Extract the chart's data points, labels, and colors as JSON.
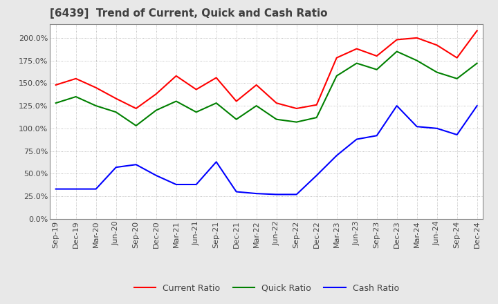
{
  "title": "[6439]  Trend of Current, Quick and Cash Ratio",
  "x_labels": [
    "Sep-19",
    "Dec-19",
    "Mar-20",
    "Jun-20",
    "Sep-20",
    "Dec-20",
    "Mar-21",
    "Jun-21",
    "Sep-21",
    "Dec-21",
    "Mar-22",
    "Jun-22",
    "Sep-22",
    "Dec-22",
    "Mar-23",
    "Jun-23",
    "Sep-23",
    "Dec-23",
    "Mar-24",
    "Jun-24",
    "Sep-24",
    "Dec-24"
  ],
  "current_ratio": [
    148,
    155,
    145,
    133,
    122,
    138,
    158,
    143,
    156,
    130,
    148,
    128,
    122,
    126,
    178,
    188,
    180,
    198,
    200,
    192,
    178,
    208
  ],
  "quick_ratio": [
    128,
    135,
    125,
    118,
    103,
    120,
    130,
    118,
    128,
    110,
    125,
    110,
    107,
    112,
    158,
    172,
    165,
    185,
    175,
    162,
    155,
    172
  ],
  "cash_ratio": [
    33,
    33,
    33,
    57,
    60,
    48,
    38,
    38,
    63,
    30,
    28,
    27,
    27,
    48,
    70,
    88,
    92,
    125,
    102,
    100,
    93,
    125
  ],
  "current_color": "#ff0000",
  "quick_color": "#008000",
  "cash_color": "#0000ff",
  "ylim": [
    0,
    215
  ],
  "yticks": [
    0,
    25,
    50,
    75,
    100,
    125,
    150,
    175,
    200
  ],
  "plot_bg_color": "#ffffff",
  "fig_bg_color": "#e8e8e8",
  "grid_color": "#999999",
  "title_color": "#404040",
  "title_fontsize": 11,
  "axis_fontsize": 8,
  "legend_fontsize": 9
}
